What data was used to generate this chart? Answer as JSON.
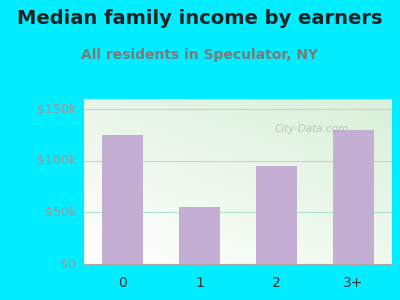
{
  "title": "Median family income by earners",
  "subtitle": "All residents in Speculator, NY",
  "categories": [
    "0",
    "1",
    "2",
    "3+"
  ],
  "values": [
    125000,
    55000,
    95000,
    130000
  ],
  "bar_color": "#c4aed4",
  "outer_bg": "#00eeff",
  "yticks": [
    0,
    50000,
    100000,
    150000
  ],
  "ytick_labels": [
    "$0",
    "$50k",
    "$100k",
    "$150k"
  ],
  "ylim": [
    0,
    160000
  ],
  "title_fontsize": 14,
  "subtitle_fontsize": 10,
  "title_color": "#222222",
  "subtitle_color": "#7a7a7a",
  "tick_label_color": "#999999",
  "watermark": "City-Data.com"
}
